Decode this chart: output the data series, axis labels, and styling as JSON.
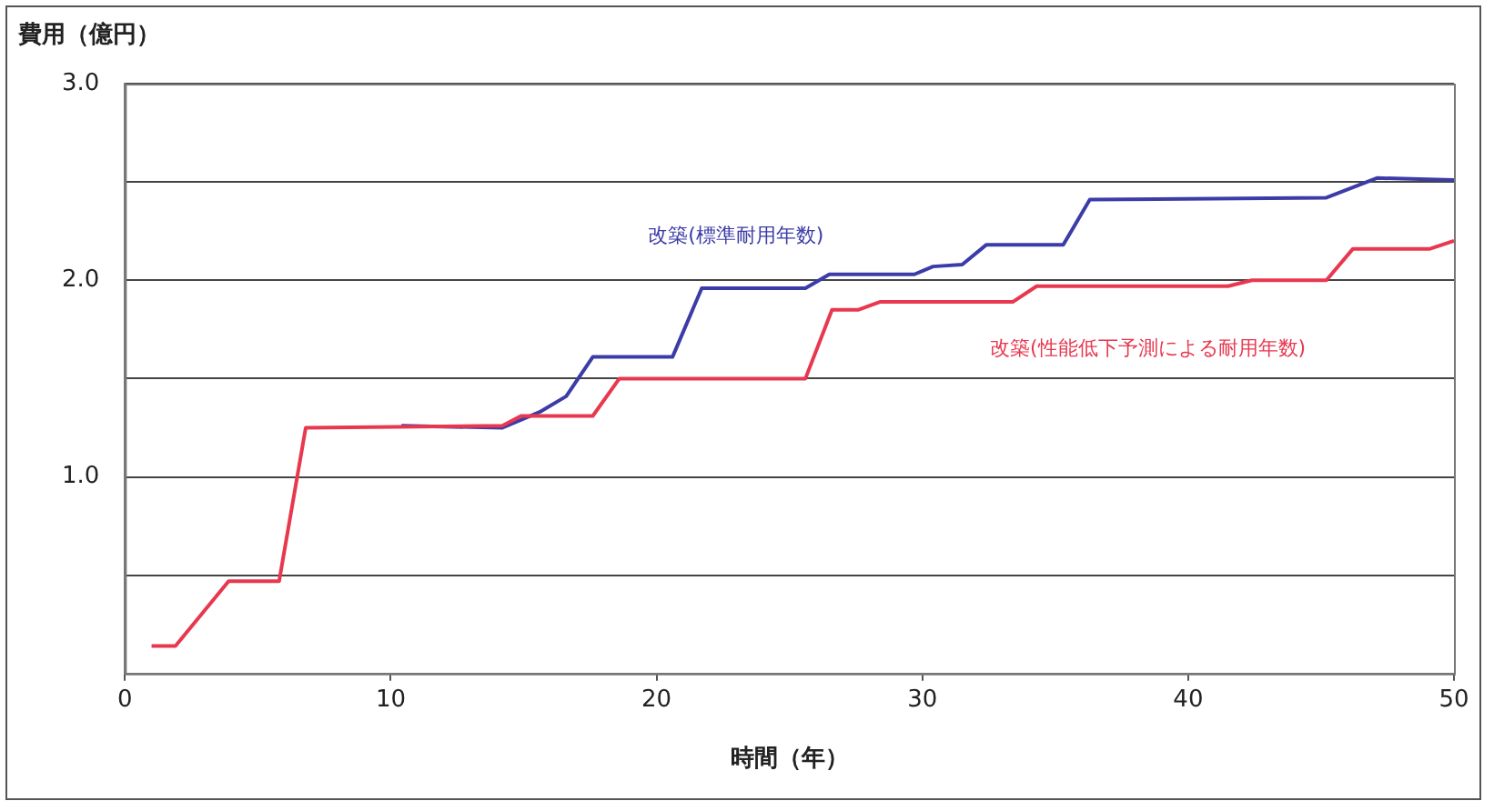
{
  "chart_data": {
    "type": "line",
    "xlabel": "時間（年）",
    "ylabel": "費用（億円）",
    "xlim": [
      0,
      50
    ],
    "xticks": [
      0,
      10,
      20,
      30,
      40,
      50
    ],
    "ylim": [
      0,
      3
    ],
    "yticks": [
      {
        "value": 0,
        "label": null
      },
      {
        "value": 0.5,
        "label": null
      },
      {
        "value": 1,
        "label": "1.0"
      },
      {
        "value": 1.5,
        "label": null
      },
      {
        "value": 2,
        "label": "2.0"
      },
      {
        "value": 2.5,
        "label": null
      },
      {
        "value": 3,
        "label": "3.0"
      }
    ],
    "grid": "y",
    "legend": false,
    "marker": "none",
    "line_style": "solid",
    "series": [
      {
        "name": "改築(標準耐用年数)",
        "color": "#3c3ca8",
        "x": [
          null,
          null,
          null,
          null,
          null,
          10.4,
          14.2,
          15.6,
          16.6,
          17.6,
          20.6,
          21.7,
          25.6,
          26.5,
          29.7,
          30.4,
          31.5,
          32.4,
          35.3,
          36.3,
          45.2,
          47.1,
          50
        ],
        "values": [
          null,
          null,
          null,
          null,
          null,
          1.26,
          1.25,
          1.33,
          1.41,
          1.61,
          1.61,
          1.96,
          1.96,
          2.03,
          2.03,
          2.07,
          2.08,
          2.18,
          2.18,
          2.41,
          2.42,
          2.52,
          2.51
        ]
      },
      {
        "name": "改築(性能低下予測による耐用年数)",
        "color": "#e8384f",
        "x": [
          1,
          1.9,
          3.9,
          5.8,
          6.8,
          14.2,
          14.9,
          17.6,
          18.6,
          25.6,
          26.6,
          27.6,
          28.4,
          33.4,
          34.3,
          41.5,
          42.4,
          45.2,
          46.2,
          49.1,
          50
        ],
        "values": [
          0.14,
          0.14,
          0.47,
          0.47,
          1.25,
          1.26,
          1.31,
          1.31,
          1.5,
          1.5,
          1.85,
          1.85,
          1.89,
          1.89,
          1.97,
          1.97,
          2.0,
          2.0,
          2.16,
          2.16,
          2.2
        ]
      }
    ]
  }
}
